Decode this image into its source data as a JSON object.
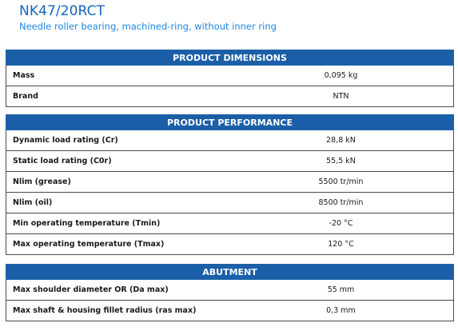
{
  "title": "NK47/20RCT",
  "subtitle": "Needle roller bearing, machined-ring, without inner ring",
  "sections": [
    {
      "header": "PRODUCT DIMENSIONS",
      "rows": [
        {
          "label": "Mass",
          "value": "0,095 kg"
        },
        {
          "label": "Brand",
          "value": "NTN"
        }
      ]
    },
    {
      "header": "PRODUCT PERFORMANCE",
      "rows": [
        {
          "label": "Dynamic load rating (Cr)",
          "value": "28,8 kN"
        },
        {
          "label": "Static load rating (C0r)",
          "value": "55,5 kN"
        },
        {
          "label": "Nlim (grease)",
          "value": "5500 tr/min"
        },
        {
          "label": "Nlim (oil)",
          "value": "8500 tr/min"
        },
        {
          "label": "Min operating temperature (Tmin)",
          "value": "-20 °C"
        },
        {
          "label": "Max operating temperature (Tmax)",
          "value": "120 °C"
        }
      ]
    },
    {
      "header": "ABUTMENT",
      "rows": [
        {
          "label": "Max shoulder diameter OR (Da max)",
          "value": "55 mm"
        },
        {
          "label": "Max shaft & housing fillet radius (ras max)",
          "value": "0,3 mm"
        }
      ]
    }
  ],
  "colors": {
    "header_bg": "#1b5fa8",
    "title": "#1565c0",
    "subtitle": "#1e88e5"
  }
}
